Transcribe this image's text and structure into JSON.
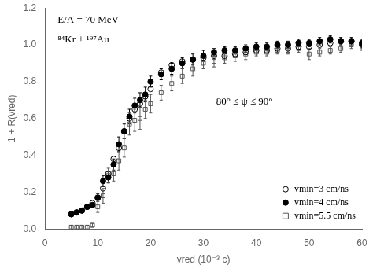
{
  "chart_data": {
    "type": "scatter",
    "xlabel": "vred (10⁻³ c)",
    "ylabel": "1 + R(vred)",
    "annotations": [
      "E/A = 70 MeV",
      "⁸⁴Kr + ¹⁹⁷Au",
      "80° ≤ ψ ≤ 90°"
    ],
    "xlim": [
      0,
      60
    ],
    "ylim": [
      0.0,
      1.2
    ],
    "xticks": [
      0,
      10,
      20,
      30,
      40,
      50,
      60
    ],
    "yticks": [
      {
        "value": 0.0,
        "label": "0.0"
      },
      0.2,
      0.4,
      0.6,
      0.8,
      {
        "value": 1.0,
        "label": "1.0"
      },
      1.2
    ],
    "grid": false,
    "legend": "lower right",
    "series": [
      {
        "name": "vmin=3 cm/ns",
        "color": "#000000",
        "marker": "circle_open",
        "x": [
          5,
          6,
          7,
          8,
          9,
          10,
          11,
          12,
          13,
          14,
          15,
          16,
          17,
          18,
          19,
          20,
          22,
          24,
          26,
          28,
          30,
          32,
          34,
          36,
          38,
          40,
          42,
          44,
          46,
          48,
          50,
          52,
          54,
          56,
          58,
          60
        ],
        "values": [
          0.08,
          0.09,
          0.1,
          0.12,
          0.14,
          0.17,
          0.22,
          0.3,
          0.38,
          0.44,
          0.53,
          0.6,
          0.65,
          0.68,
          0.72,
          0.76,
          0.85,
          0.89,
          0.91,
          0.92,
          0.93,
          0.94,
          0.94,
          0.95,
          0.96,
          0.97,
          0.97,
          0.98,
          0.98,
          0.99,
          0.99,
          1.0,
          1.01,
          1.02,
          1.02,
          1.0
        ]
      },
      {
        "name": "vmin=4 cm/ns",
        "color": "#000000",
        "marker": "circle",
        "x": [
          5,
          6,
          7,
          8,
          9,
          10,
          11,
          12,
          13,
          14,
          15,
          16,
          17,
          18,
          19,
          20,
          22,
          24,
          26,
          28,
          30,
          32,
          34,
          36,
          38,
          40,
          42,
          44,
          46,
          48,
          50,
          52,
          54,
          56,
          58,
          60
        ],
        "values": [
          0.08,
          0.09,
          0.1,
          0.12,
          0.13,
          0.17,
          0.26,
          0.28,
          0.35,
          0.46,
          0.53,
          0.61,
          0.67,
          0.7,
          0.73,
          0.8,
          0.84,
          0.87,
          0.9,
          0.92,
          0.94,
          0.96,
          0.97,
          0.97,
          0.98,
          0.99,
          0.99,
          1.0,
          1.0,
          1.01,
          1.01,
          1.02,
          1.03,
          1.02,
          1.02,
          1.01
        ],
        "yerr": [
          0.01,
          0.01,
          0.01,
          0.01,
          0.01,
          0.02,
          0.03,
          0.03,
          0.03,
          0.04,
          0.04,
          0.04,
          0.04,
          0.04,
          0.04,
          0.03,
          0.03,
          0.03,
          0.03,
          0.03,
          0.03,
          0.02,
          0.02,
          0.02,
          0.02,
          0.02,
          0.02,
          0.02,
          0.02,
          0.02,
          0.02,
          0.02,
          0.02,
          0.02,
          0.02,
          0.02
        ]
      },
      {
        "name": "vmin=5.5 cm/ns",
        "color": "#555555",
        "marker": "square_open",
        "x": [
          5,
          6,
          7,
          8,
          9,
          10,
          11,
          12,
          13,
          14,
          15,
          16,
          17,
          18,
          19,
          20,
          22,
          24,
          26,
          28,
          30,
          32,
          34,
          36,
          38,
          40,
          42,
          44,
          46,
          48,
          50,
          52,
          54,
          56,
          58,
          60
        ],
        "values": [
          0.01,
          0.01,
          0.01,
          0.01,
          0.02,
          0.12,
          0.18,
          0.29,
          0.3,
          0.37,
          0.44,
          0.57,
          0.59,
          0.6,
          0.65,
          0.68,
          0.74,
          0.79,
          0.83,
          0.87,
          0.9,
          0.91,
          0.93,
          0.94,
          0.95,
          0.96,
          0.96,
          0.97,
          0.97,
          0.98,
          0.95,
          0.96,
          0.97,
          0.98,
          1.0,
          0.99
        ],
        "yerr": [
          0.01,
          0.01,
          0.01,
          0.01,
          0.01,
          0.03,
          0.04,
          0.04,
          0.04,
          0.05,
          0.05,
          0.06,
          0.06,
          0.06,
          0.05,
          0.05,
          0.04,
          0.04,
          0.04,
          0.04,
          0.03,
          0.03,
          0.03,
          0.03,
          0.03,
          0.02,
          0.02,
          0.02,
          0.02,
          0.02,
          0.03,
          0.02,
          0.02,
          0.02,
          0.02,
          0.02
        ]
      }
    ]
  }
}
